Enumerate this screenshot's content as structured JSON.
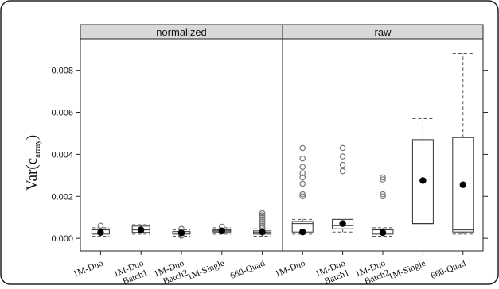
{
  "chart_data": {
    "type": "boxplot",
    "ylabel_main": "Var(c",
    "ylabel_sub": "array",
    "ylabel_close": ")",
    "ylim": [
      -0.0006,
      0.0095
    ],
    "yticks": [
      0.0,
      0.002,
      0.004,
      0.006,
      0.008
    ],
    "ytick_labels": [
      "0.000",
      "0.002",
      "0.004",
      "0.006",
      "0.008"
    ],
    "grid": false,
    "panels": [
      {
        "title": "normalized",
        "categories": [
          "1M-Duo",
          "1M-Duo Batch1",
          "1M-Duo Batch2",
          "1M-Single",
          "660-Quad"
        ],
        "category_lines": [
          [
            "1M-Duo"
          ],
          [
            "1M-Duo",
            "Batch1"
          ],
          [
            "1M-Duo",
            "Batch2"
          ],
          [
            "1M-Single"
          ],
          [
            "660-Quad"
          ]
        ],
        "boxes": [
          {
            "whisker_low": 0.0001,
            "q1": 0.0002,
            "median": 0.00025,
            "q3": 0.0004,
            "whisker_high": 0.0005,
            "mean": 0.00028,
            "outliers": [
              0.0006
            ]
          },
          {
            "whisker_low": 0.0002,
            "q1": 0.00028,
            "median": 0.0004,
            "q3": 0.00058,
            "whisker_high": 0.00065,
            "mean": 0.0004,
            "outliers": []
          },
          {
            "whisker_low": 0.0001,
            "q1": 0.0002,
            "median": 0.00025,
            "q3": 0.00032,
            "whisker_high": 0.0004,
            "mean": 0.00026,
            "outliers": [
              0.00012,
              0.00045
            ]
          },
          {
            "whisker_low": 0.0002,
            "q1": 0.0003,
            "median": 0.00035,
            "q3": 0.0004,
            "whisker_high": 0.0005,
            "mean": 0.00035,
            "outliers": [
              0.00055
            ]
          },
          {
            "whisker_low": 0.0001,
            "q1": 0.0002,
            "median": 0.00028,
            "q3": 0.00035,
            "whisker_high": 0.00045,
            "mean": 0.0003,
            "outliers": [
              0.0005,
              0.0006,
              0.0007,
              0.0008,
              0.0009,
              0.001,
              0.0011,
              0.0012
            ]
          }
        ]
      },
      {
        "title": "raw",
        "categories": [
          "1M-Duo",
          "1M-Duo Batch1",
          "1M-Duo Batch2",
          "1M-Single",
          "660-Quad"
        ],
        "category_lines": [
          [
            "1M-Duo"
          ],
          [
            "1M-Duo",
            "Batch1"
          ],
          [
            "1M-Duo",
            "Batch2"
          ],
          [
            "1M-Single"
          ],
          [
            "660-Quad"
          ]
        ],
        "boxes": [
          {
            "whisker_low": 0.0002,
            "q1": 0.0003,
            "median": 0.0007,
            "q3": 0.0008,
            "whisker_high": 0.0009,
            "mean": 0.0003,
            "outliers": [
              0.002,
              0.0021,
              0.0026,
              0.0029,
              0.0031,
              0.0034,
              0.0038,
              0.0043
            ]
          },
          {
            "whisker_low": 0.0003,
            "q1": 0.00045,
            "median": 0.0006,
            "q3": 0.0009,
            "whisker_high": 0.0009,
            "mean": 0.0007,
            "outliers": [
              0.0032,
              0.0035,
              0.0039,
              0.0043
            ]
          },
          {
            "whisker_low": 0.0001,
            "q1": 0.0002,
            "median": 0.00025,
            "q3": 0.0004,
            "whisker_high": 0.0005,
            "mean": 0.00027,
            "outliers": [
              0.002,
              0.0021,
              0.0028,
              0.0029
            ]
          },
          {
            "whisker_low": 0.0007,
            "q1": 0.0007,
            "median": 0.0007,
            "q3": 0.0047,
            "whisker_high": 0.0057,
            "mean": 0.00275,
            "outliers": []
          },
          {
            "whisker_low": 0.0002,
            "q1": 0.0003,
            "median": 0.0004,
            "q3": 0.0048,
            "whisker_high": 0.0088,
            "mean": 0.00255,
            "outliers": []
          }
        ]
      }
    ]
  }
}
